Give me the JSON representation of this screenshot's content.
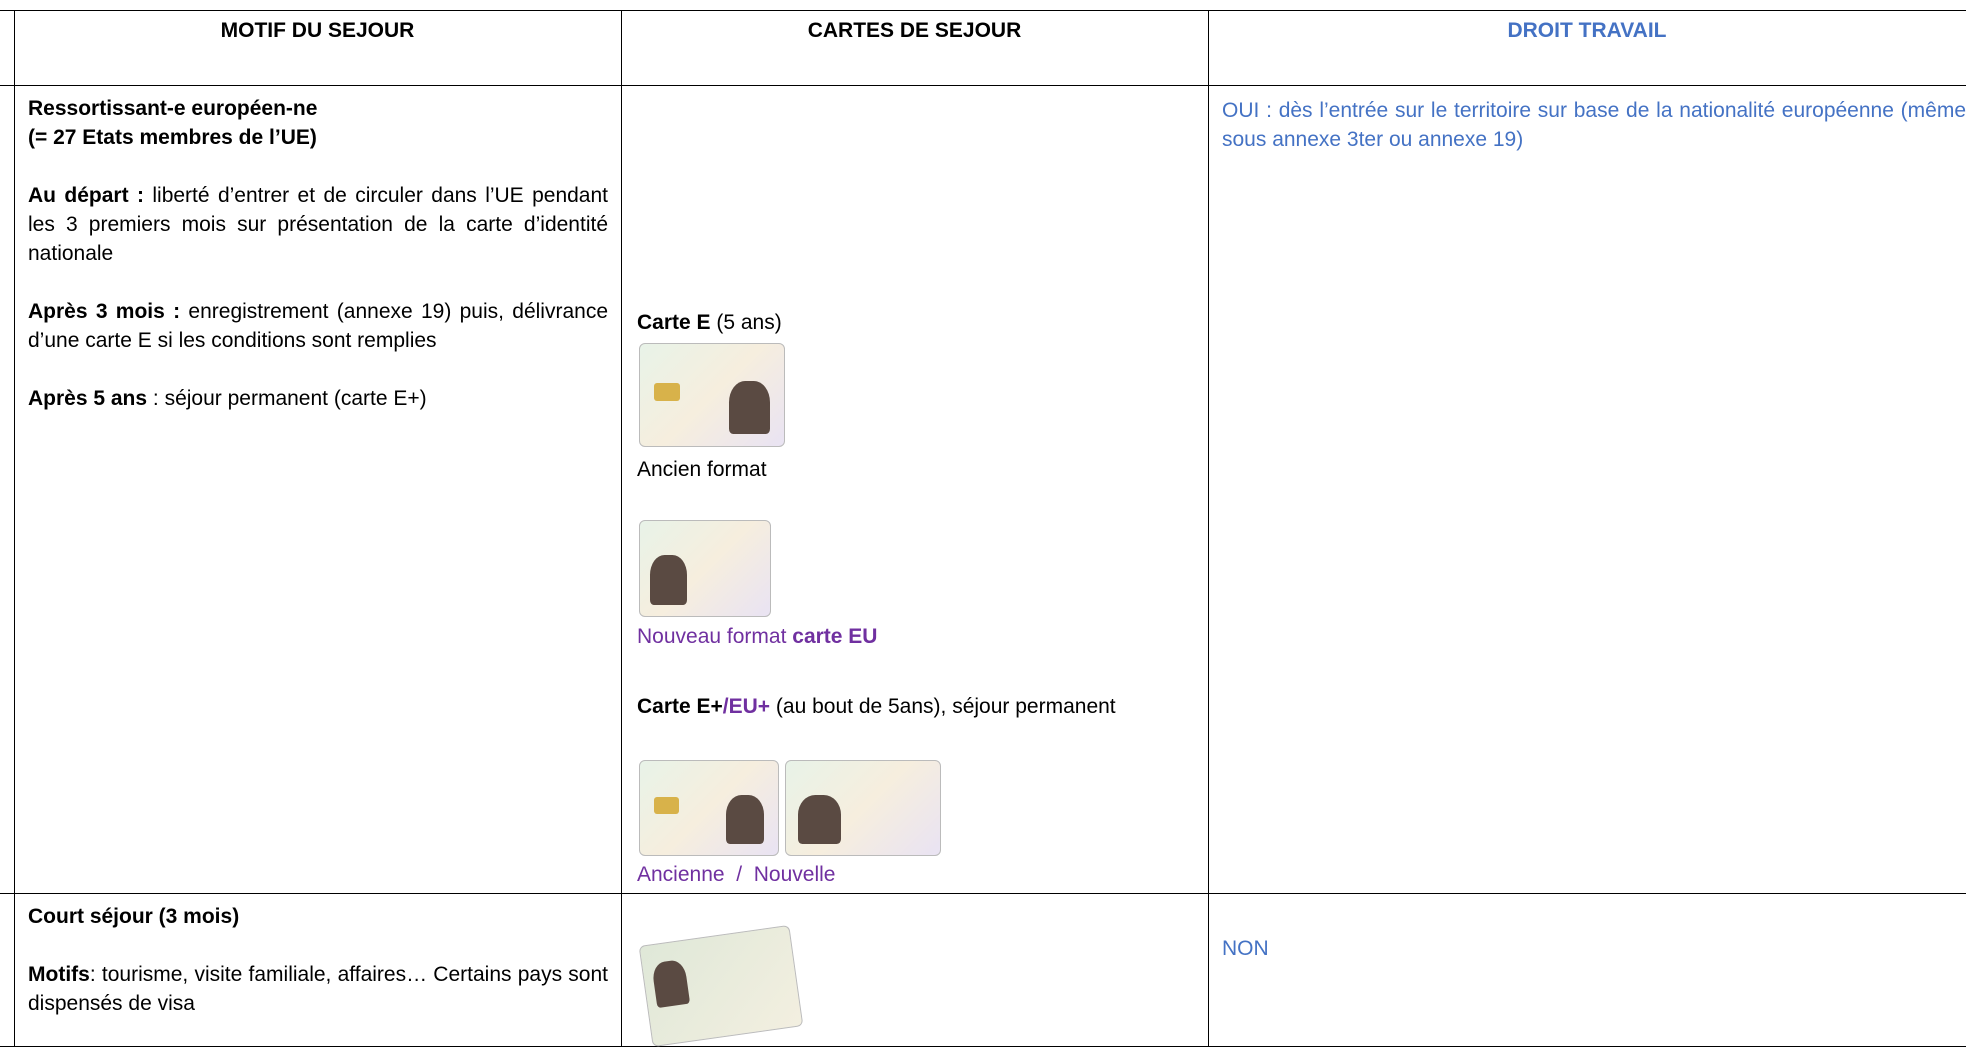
{
  "table": {
    "header": [
      "MOTIF DU SEJOUR",
      "CARTES DE SEJOUR",
      "DROIT TRAVAIL"
    ],
    "rows": [
      {
        "motif": {
          "title": "Ressortissant-e européen-ne",
          "subtitle": "(= 27 Etats membres de l’UE)",
          "paragraphs": [
            {
              "label": "Au départ :",
              "text": "liberté d’entrer et de circuler dans l’UE pendant les 3 premiers mois sur présentation de la carte d’identité nationale"
            },
            {
              "label": "Après 3 mois :",
              "text": "enregistrement (annexe 19) puis, délivrance d’une carte E si les conditions sont remplies"
            },
            {
              "label": "Après 5 ans",
              "text": ": séjour permanent (carte E+)"
            }
          ]
        },
        "cartes": {
          "carte_e": {
            "label": "Carte E",
            "text": "(5 ans)"
          },
          "ancien": "Ancien format",
          "nouveau": {
            "text": "Nouveau format",
            "label": "carte EU"
          },
          "carte_plus": {
            "label": "Carte E+",
            "label2": "/EU+",
            "text": "(au bout de 5ans), séjour permanent"
          },
          "ancienne_nouvelle": "Ancienne  /  Nouvelle"
        },
        "droit": "OUI : dès l’entrée sur le territoire sur base de la nationalité européenne (même sous annexe 3ter ou annexe 19)"
      },
      {
        "motif": {
          "title": "Court séjour (3 mois)",
          "paragraphs": [
            {
              "label": "Motifs",
              "text": ": tourisme, visite familiale, affaires… Certains pays sont dispensés de visa"
            }
          ]
        },
        "droit": "NON"
      }
    ]
  }
}
